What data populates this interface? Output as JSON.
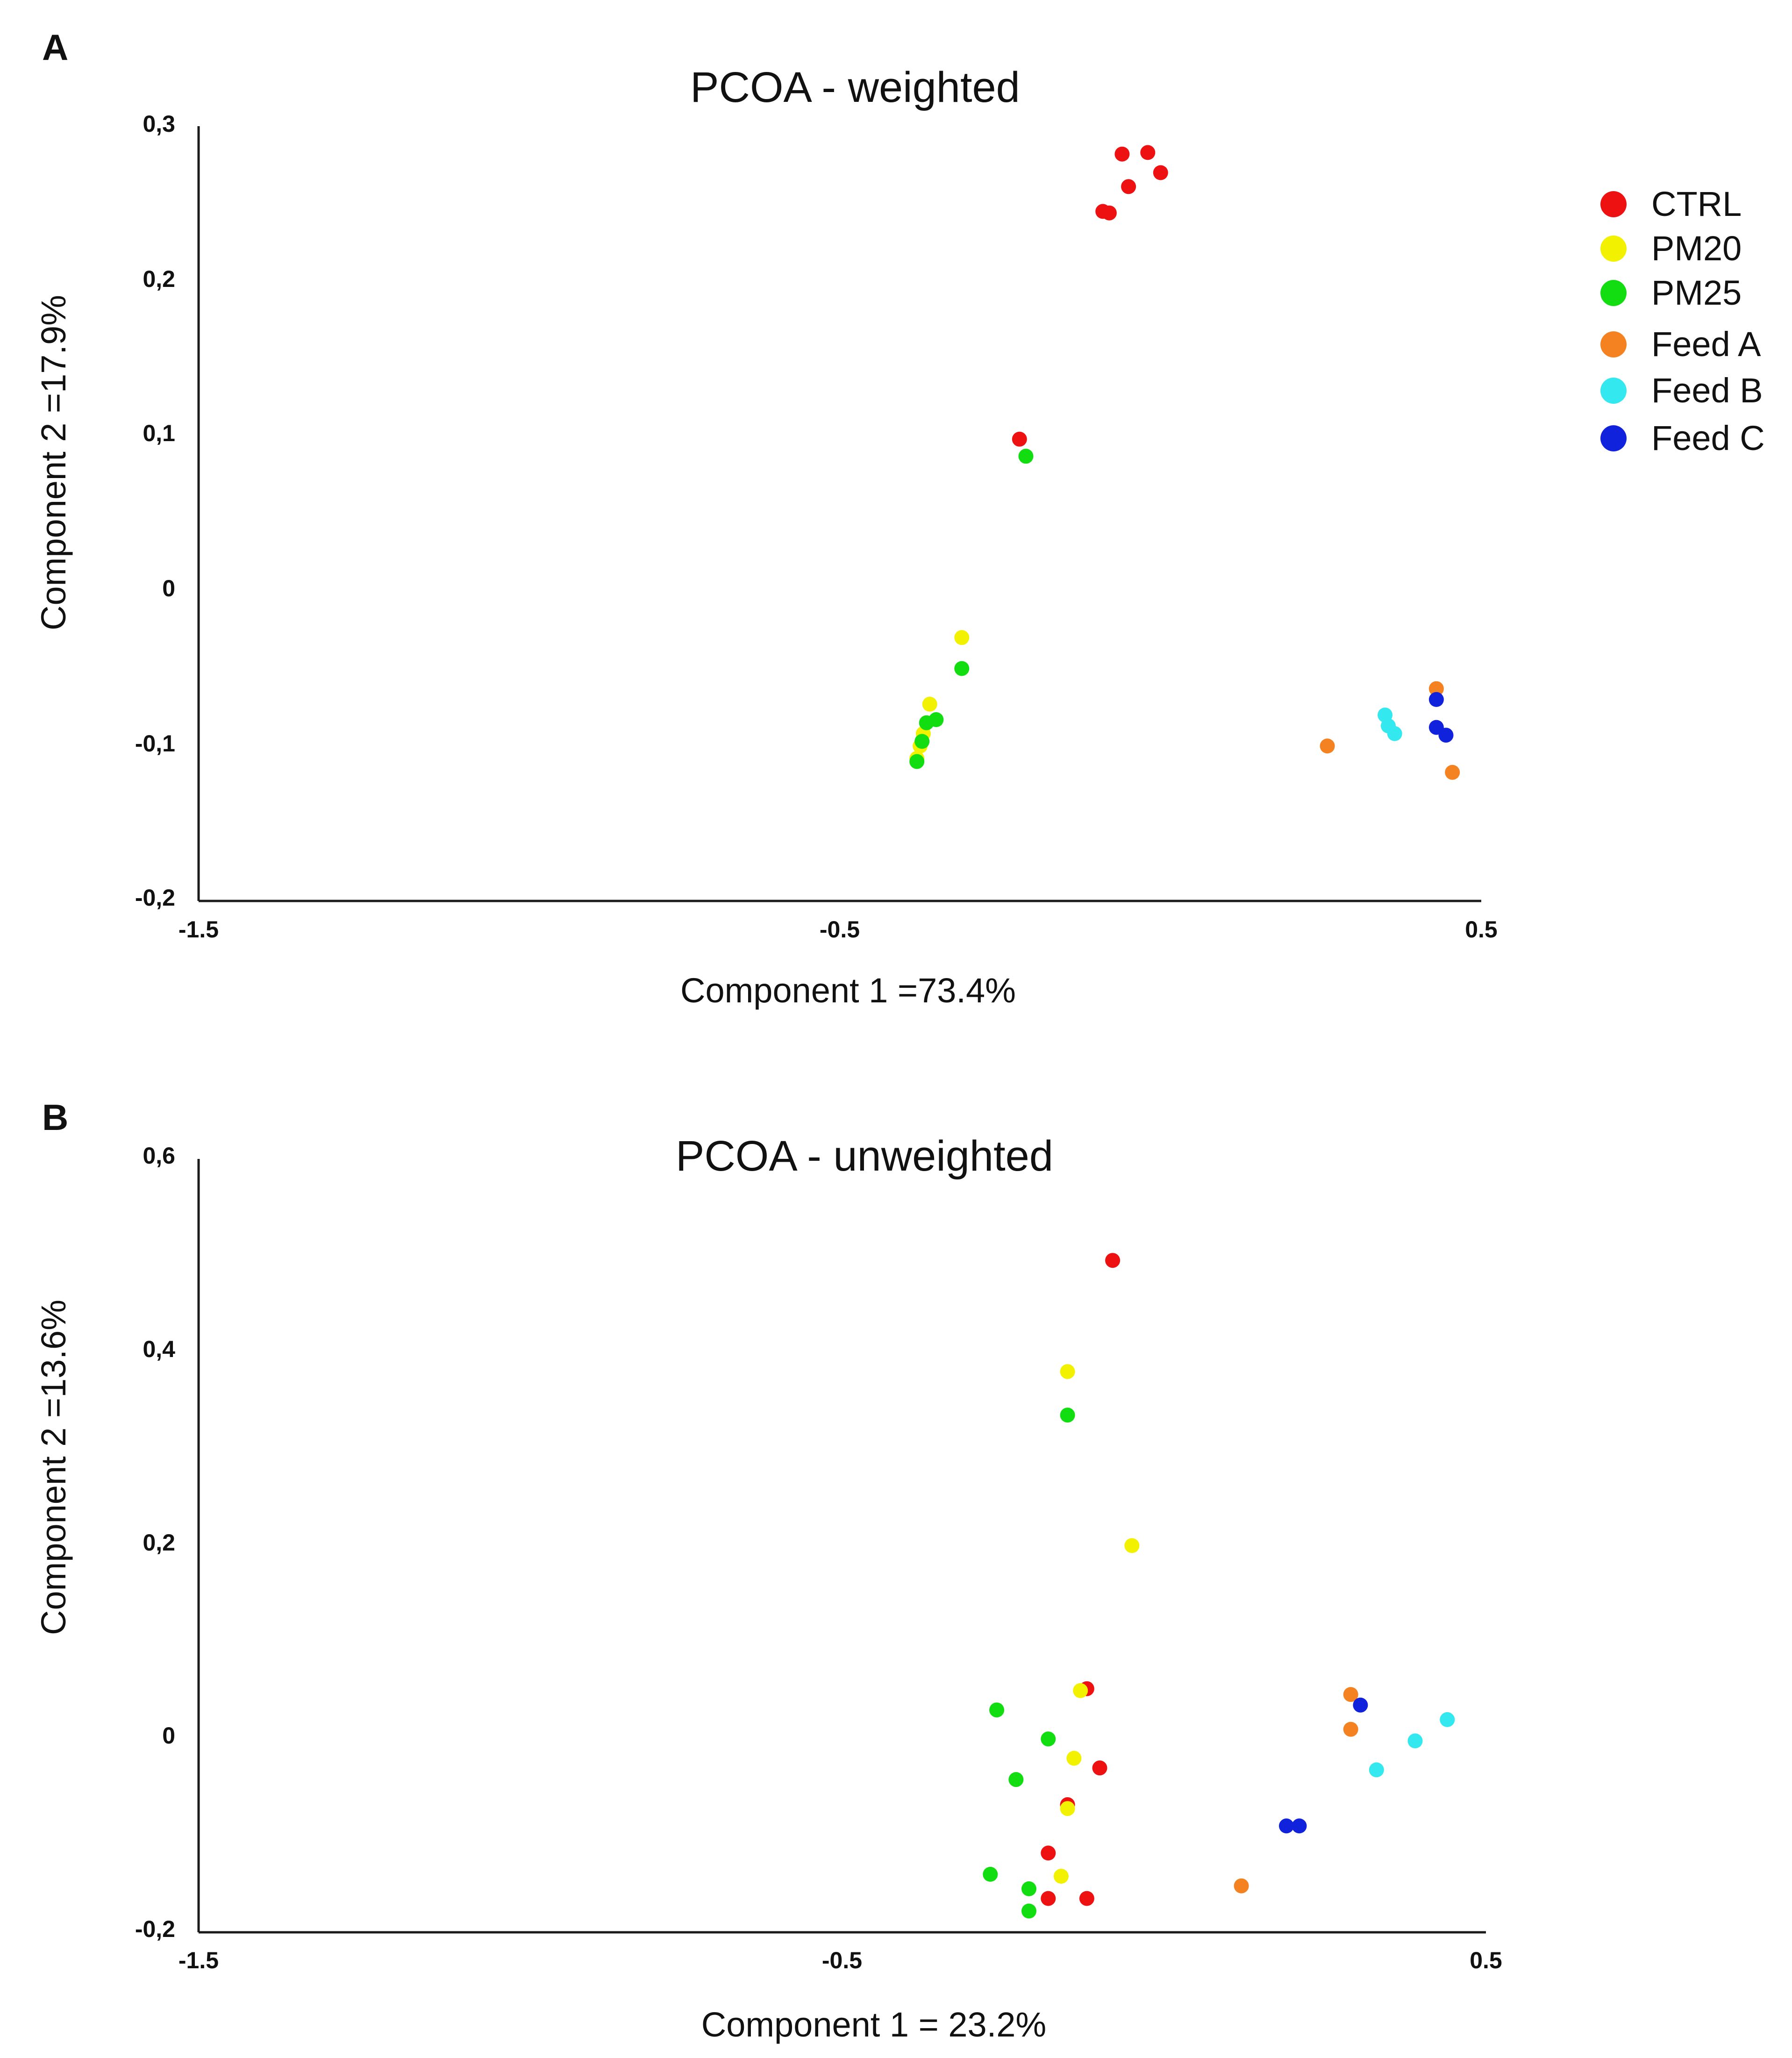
{
  "chart_data": [
    {
      "type": "scatter",
      "panel": "A",
      "title": "PCOA - weighted",
      "xlabel": "Component 1 =73.4%",
      "ylabel": "Component 2 =17.9%",
      "xlim": [
        -1.5,
        0.5
      ],
      "ylim": [
        -0.2,
        0.3
      ],
      "xticks": [
        -1.5,
        -0.5,
        0.5
      ],
      "xtick_labels": [
        "-1.5",
        "-0.5",
        "0.5"
      ],
      "yticks": [
        -0.2,
        -0.1,
        0,
        0.1,
        0.2,
        0.3
      ],
      "ytick_labels": [
        "-0,2",
        "-0,1",
        "0",
        "0,1",
        "0,2",
        "0,3"
      ],
      "grid": false,
      "legend": "right",
      "series": [
        {
          "name": "CTRL",
          "color": "#ee1111",
          "points": [
            [
              -0.22,
              0.098
            ],
            [
              -0.09,
              0.245
            ],
            [
              -0.08,
              0.244
            ],
            [
              -0.05,
              0.261
            ],
            [
              -0.06,
              0.282
            ],
            [
              -0.02,
              0.283
            ],
            [
              0.0,
              0.27
            ]
          ]
        },
        {
          "name": "PM20",
          "color": "#f2f200",
          "points": [
            [
              -0.31,
              -0.03
            ],
            [
              -0.36,
              -0.073
            ],
            [
              -0.37,
              -0.092
            ],
            [
              -0.375,
              -0.1
            ],
            [
              -0.38,
              -0.108
            ]
          ]
        },
        {
          "name": "PM25",
          "color": "#11dd11",
          "points": [
            [
              -0.21,
              0.087
            ],
            [
              -0.31,
              -0.05
            ],
            [
              -0.35,
              -0.083
            ],
            [
              -0.365,
              -0.085
            ],
            [
              -0.372,
              -0.097
            ],
            [
              -0.38,
              -0.11
            ]
          ]
        },
        {
          "name": "Feed A",
          "color": "#f58220",
          "points": [
            [
              0.43,
              -0.063
            ],
            [
              0.26,
              -0.1
            ],
            [
              0.455,
              -0.117
            ]
          ]
        },
        {
          "name": "Feed B",
          "color": "#33e8ee",
          "points": [
            [
              0.35,
              -0.08
            ],
            [
              0.355,
              -0.087
            ],
            [
              0.365,
              -0.092
            ]
          ]
        },
        {
          "name": "Feed C",
          "color": "#1122dd",
          "points": [
            [
              0.43,
              -0.07
            ],
            [
              0.43,
              -0.088
            ],
            [
              0.445,
              -0.093
            ]
          ]
        }
      ]
    },
    {
      "type": "scatter",
      "panel": "B",
      "title": "PCOA - unweighted",
      "xlabel": "Component 1 = 23.2%",
      "ylabel": "Component 2 =13.6%",
      "xlim": [
        -1.5,
        0.5
      ],
      "ylim": [
        -0.2,
        0.6
      ],
      "xticks": [
        -1.5,
        -0.5,
        0.5
      ],
      "xtick_labels": [
        "-1.5",
        "-0.5",
        "0.5"
      ],
      "yticks": [
        -0.2,
        0,
        0.2,
        0.4,
        0.6
      ],
      "ytick_labels": [
        "-0,2",
        "0",
        "0,2",
        "0,4",
        "0,6"
      ],
      "grid": false,
      "legend": "none",
      "series": [
        {
          "name": "CTRL",
          "color": "#ee1111",
          "points": [
            [
              -0.08,
              0.495
            ],
            [
              -0.12,
              0.052
            ],
            [
              -0.1,
              -0.03
            ],
            [
              -0.15,
              -0.068
            ],
            [
              -0.18,
              -0.118
            ],
            [
              -0.18,
              -0.165
            ],
            [
              -0.12,
              -0.165
            ]
          ]
        },
        {
          "name": "PM20",
          "color": "#f2f200",
          "points": [
            [
              -0.15,
              0.38
            ],
            [
              -0.05,
              0.2
            ],
            [
              -0.13,
              0.05
            ],
            [
              -0.14,
              -0.02
            ],
            [
              -0.15,
              -0.072
            ],
            [
              -0.16,
              -0.142
            ]
          ]
        },
        {
          "name": "PM25",
          "color": "#11dd11",
          "points": [
            [
              -0.15,
              0.335
            ],
            [
              -0.26,
              0.03
            ],
            [
              -0.18,
              0.0
            ],
            [
              -0.23,
              -0.042
            ],
            [
              -0.27,
              -0.14
            ],
            [
              -0.21,
              -0.155
            ],
            [
              -0.21,
              -0.178
            ]
          ]
        },
        {
          "name": "Feed A",
          "color": "#f58220",
          "points": [
            [
              0.29,
              0.046
            ],
            [
              0.29,
              0.01
            ],
            [
              0.12,
              -0.152
            ]
          ]
        },
        {
          "name": "Feed B",
          "color": "#33e8ee",
          "points": [
            [
              0.44,
              0.02
            ],
            [
              0.39,
              -0.002
            ],
            [
              0.33,
              -0.032
            ]
          ]
        },
        {
          "name": "Feed C",
          "color": "#1122dd",
          "points": [
            [
              0.305,
              0.035
            ],
            [
              0.19,
              -0.09
            ],
            [
              0.21,
              -0.09
            ]
          ]
        }
      ]
    }
  ]
}
